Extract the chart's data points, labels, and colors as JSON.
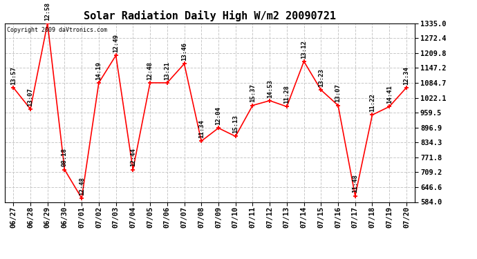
{
  "title": "Solar Radiation Daily High W/m2 20090721",
  "copyright": "Copyright 2009 daVtronics.com",
  "dates": [
    "06/27",
    "06/28",
    "06/29",
    "06/30",
    "07/01",
    "07/02",
    "07/03",
    "07/04",
    "07/05",
    "07/06",
    "07/07",
    "07/08",
    "07/09",
    "07/10",
    "07/11",
    "07/12",
    "07/13",
    "07/14",
    "07/15",
    "07/16",
    "07/17",
    "07/18",
    "07/19",
    "07/20"
  ],
  "values": [
    1065,
    975,
    1335,
    720,
    600,
    1085,
    1200,
    720,
    1085,
    1085,
    1165,
    840,
    895,
    860,
    990,
    1010,
    985,
    1175,
    1055,
    990,
    610,
    950,
    985,
    1065
  ],
  "labels": [
    "13:57",
    "13:07",
    "12:58",
    "08:18",
    "12:48",
    "14:19",
    "12:49",
    "12:44",
    "12:48",
    "13:21",
    "13:46",
    "11:34",
    "12:04",
    "15:13",
    "15:37",
    "14:53",
    "11:28",
    "13:12",
    "13:23",
    "13:07",
    "11:48",
    "11:22",
    "14:41",
    "12:34"
  ],
  "ymin": 584.0,
  "ymax": 1335.0,
  "yticks": [
    584.0,
    646.6,
    709.2,
    771.8,
    834.3,
    896.9,
    959.5,
    1022.1,
    1084.7,
    1147.2,
    1209.8,
    1272.4,
    1335.0
  ],
  "line_color": "#ff0000",
  "marker_color": "#ff0000",
  "bg_color": "#ffffff",
  "grid_color": "#c8c8c8",
  "title_fontsize": 11,
  "label_fontsize": 6.5,
  "tick_fontsize": 7.5,
  "copyright_fontsize": 6
}
